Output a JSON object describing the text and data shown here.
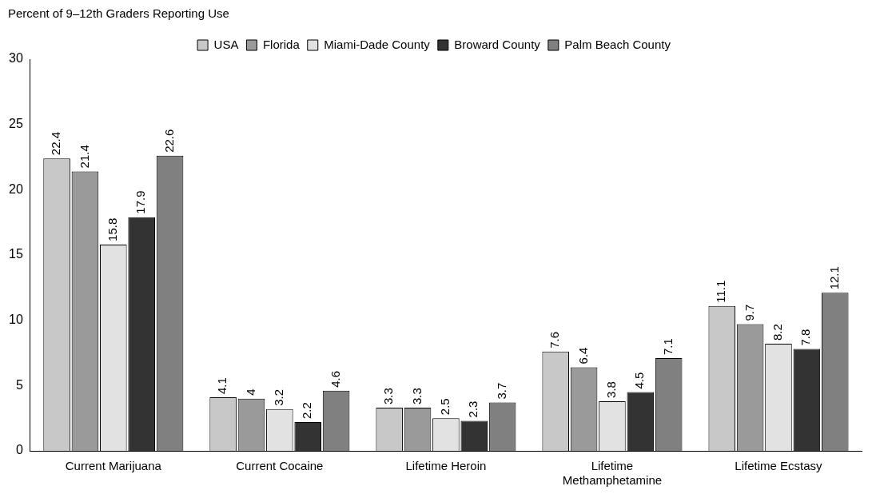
{
  "chart_data": {
    "type": "bar",
    "ylabel": "Percent of 9–12th Graders Reporting Use",
    "categories": [
      "Current Marijuana",
      "Current Cocaine",
      "Lifetime Heroin",
      "Lifetime Methamphetamine",
      "Lifetime Ecstasy"
    ],
    "series": [
      {
        "name": "USA",
        "color": "#c8c8c8",
        "values": [
          22.4,
          4.1,
          3.3,
          7.6,
          11.1
        ]
      },
      {
        "name": "Florida",
        "color": "#9a9a9a",
        "values": [
          21.4,
          4,
          3.3,
          6.4,
          9.7
        ]
      },
      {
        "name": "Miami-Dade County",
        "color": "#e2e2e2",
        "values": [
          15.8,
          3.2,
          2.5,
          3.8,
          8.2
        ]
      },
      {
        "name": "Broward County",
        "color": "#333333",
        "values": [
          17.9,
          2.2,
          2.3,
          4.5,
          7.8
        ]
      },
      {
        "name": "Palm Beach County",
        "color": "#808080",
        "values": [
          22.6,
          4.6,
          3.7,
          7.1,
          12.1
        ]
      }
    ],
    "ylim": [
      0,
      30
    ],
    "yticks": [
      0,
      5,
      10,
      15,
      20,
      25,
      30
    ],
    "grid": false,
    "legend": "top",
    "data_labels": true
  }
}
